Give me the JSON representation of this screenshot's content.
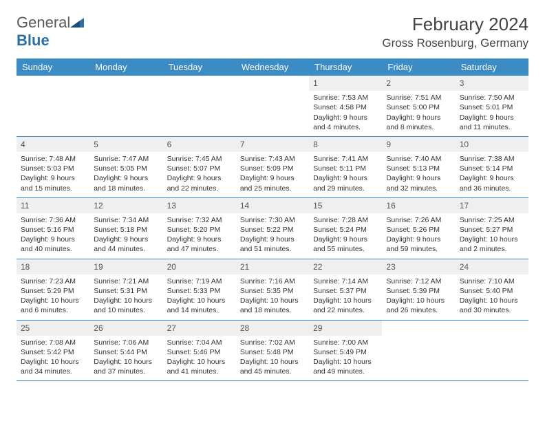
{
  "logo": {
    "text1": "General",
    "text2": "Blue"
  },
  "title": "February 2024",
  "location": "Gross Rosenburg, Germany",
  "colors": {
    "header_bg": "#3b8bc4",
    "header_fg": "#ffffff",
    "daynum_bg": "#efefef",
    "row_border": "#3b8bc4",
    "logo_gray": "#5a5a5a",
    "logo_blue": "#2b6fa8"
  },
  "weekdays": [
    "Sunday",
    "Monday",
    "Tuesday",
    "Wednesday",
    "Thursday",
    "Friday",
    "Saturday"
  ],
  "weeks": [
    [
      null,
      null,
      null,
      null,
      {
        "d": "1",
        "sr": "Sunrise: 7:53 AM",
        "ss": "Sunset: 4:58 PM",
        "dl1": "Daylight: 9 hours",
        "dl2": "and 4 minutes."
      },
      {
        "d": "2",
        "sr": "Sunrise: 7:51 AM",
        "ss": "Sunset: 5:00 PM",
        "dl1": "Daylight: 9 hours",
        "dl2": "and 8 minutes."
      },
      {
        "d": "3",
        "sr": "Sunrise: 7:50 AM",
        "ss": "Sunset: 5:01 PM",
        "dl1": "Daylight: 9 hours",
        "dl2": "and 11 minutes."
      }
    ],
    [
      {
        "d": "4",
        "sr": "Sunrise: 7:48 AM",
        "ss": "Sunset: 5:03 PM",
        "dl1": "Daylight: 9 hours",
        "dl2": "and 15 minutes."
      },
      {
        "d": "5",
        "sr": "Sunrise: 7:47 AM",
        "ss": "Sunset: 5:05 PM",
        "dl1": "Daylight: 9 hours",
        "dl2": "and 18 minutes."
      },
      {
        "d": "6",
        "sr": "Sunrise: 7:45 AM",
        "ss": "Sunset: 5:07 PM",
        "dl1": "Daylight: 9 hours",
        "dl2": "and 22 minutes."
      },
      {
        "d": "7",
        "sr": "Sunrise: 7:43 AM",
        "ss": "Sunset: 5:09 PM",
        "dl1": "Daylight: 9 hours",
        "dl2": "and 25 minutes."
      },
      {
        "d": "8",
        "sr": "Sunrise: 7:41 AM",
        "ss": "Sunset: 5:11 PM",
        "dl1": "Daylight: 9 hours",
        "dl2": "and 29 minutes."
      },
      {
        "d": "9",
        "sr": "Sunrise: 7:40 AM",
        "ss": "Sunset: 5:13 PM",
        "dl1": "Daylight: 9 hours",
        "dl2": "and 32 minutes."
      },
      {
        "d": "10",
        "sr": "Sunrise: 7:38 AM",
        "ss": "Sunset: 5:14 PM",
        "dl1": "Daylight: 9 hours",
        "dl2": "and 36 minutes."
      }
    ],
    [
      {
        "d": "11",
        "sr": "Sunrise: 7:36 AM",
        "ss": "Sunset: 5:16 PM",
        "dl1": "Daylight: 9 hours",
        "dl2": "and 40 minutes."
      },
      {
        "d": "12",
        "sr": "Sunrise: 7:34 AM",
        "ss": "Sunset: 5:18 PM",
        "dl1": "Daylight: 9 hours",
        "dl2": "and 44 minutes."
      },
      {
        "d": "13",
        "sr": "Sunrise: 7:32 AM",
        "ss": "Sunset: 5:20 PM",
        "dl1": "Daylight: 9 hours",
        "dl2": "and 47 minutes."
      },
      {
        "d": "14",
        "sr": "Sunrise: 7:30 AM",
        "ss": "Sunset: 5:22 PM",
        "dl1": "Daylight: 9 hours",
        "dl2": "and 51 minutes."
      },
      {
        "d": "15",
        "sr": "Sunrise: 7:28 AM",
        "ss": "Sunset: 5:24 PM",
        "dl1": "Daylight: 9 hours",
        "dl2": "and 55 minutes."
      },
      {
        "d": "16",
        "sr": "Sunrise: 7:26 AM",
        "ss": "Sunset: 5:26 PM",
        "dl1": "Daylight: 9 hours",
        "dl2": "and 59 minutes."
      },
      {
        "d": "17",
        "sr": "Sunrise: 7:25 AM",
        "ss": "Sunset: 5:27 PM",
        "dl1": "Daylight: 10 hours",
        "dl2": "and 2 minutes."
      }
    ],
    [
      {
        "d": "18",
        "sr": "Sunrise: 7:23 AM",
        "ss": "Sunset: 5:29 PM",
        "dl1": "Daylight: 10 hours",
        "dl2": "and 6 minutes."
      },
      {
        "d": "19",
        "sr": "Sunrise: 7:21 AM",
        "ss": "Sunset: 5:31 PM",
        "dl1": "Daylight: 10 hours",
        "dl2": "and 10 minutes."
      },
      {
        "d": "20",
        "sr": "Sunrise: 7:19 AM",
        "ss": "Sunset: 5:33 PM",
        "dl1": "Daylight: 10 hours",
        "dl2": "and 14 minutes."
      },
      {
        "d": "21",
        "sr": "Sunrise: 7:16 AM",
        "ss": "Sunset: 5:35 PM",
        "dl1": "Daylight: 10 hours",
        "dl2": "and 18 minutes."
      },
      {
        "d": "22",
        "sr": "Sunrise: 7:14 AM",
        "ss": "Sunset: 5:37 PM",
        "dl1": "Daylight: 10 hours",
        "dl2": "and 22 minutes."
      },
      {
        "d": "23",
        "sr": "Sunrise: 7:12 AM",
        "ss": "Sunset: 5:39 PM",
        "dl1": "Daylight: 10 hours",
        "dl2": "and 26 minutes."
      },
      {
        "d": "24",
        "sr": "Sunrise: 7:10 AM",
        "ss": "Sunset: 5:40 PM",
        "dl1": "Daylight: 10 hours",
        "dl2": "and 30 minutes."
      }
    ],
    [
      {
        "d": "25",
        "sr": "Sunrise: 7:08 AM",
        "ss": "Sunset: 5:42 PM",
        "dl1": "Daylight: 10 hours",
        "dl2": "and 34 minutes."
      },
      {
        "d": "26",
        "sr": "Sunrise: 7:06 AM",
        "ss": "Sunset: 5:44 PM",
        "dl1": "Daylight: 10 hours",
        "dl2": "and 37 minutes."
      },
      {
        "d": "27",
        "sr": "Sunrise: 7:04 AM",
        "ss": "Sunset: 5:46 PM",
        "dl1": "Daylight: 10 hours",
        "dl2": "and 41 minutes."
      },
      {
        "d": "28",
        "sr": "Sunrise: 7:02 AM",
        "ss": "Sunset: 5:48 PM",
        "dl1": "Daylight: 10 hours",
        "dl2": "and 45 minutes."
      },
      {
        "d": "29",
        "sr": "Sunrise: 7:00 AM",
        "ss": "Sunset: 5:49 PM",
        "dl1": "Daylight: 10 hours",
        "dl2": "and 49 minutes."
      },
      null,
      null
    ]
  ]
}
